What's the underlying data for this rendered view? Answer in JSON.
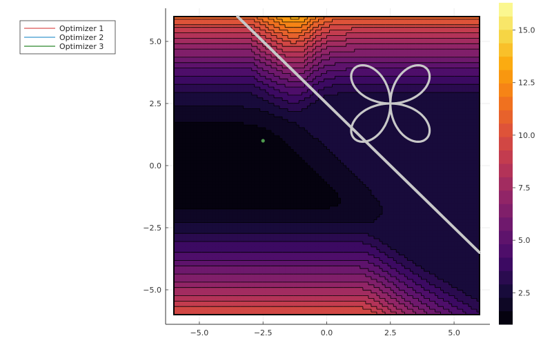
{
  "chart_data": {
    "type": "heatmap",
    "subtype": "filled-contour with overlaid optimizer paths",
    "colormap": "inferno",
    "x_range": [
      -6,
      6
    ],
    "y_range": [
      -6,
      6
    ],
    "x_ticks": [
      -5.0,
      -2.5,
      0.0,
      2.5,
      5.0
    ],
    "y_ticks": [
      -5.0,
      -2.5,
      0.0,
      2.5,
      5.0
    ],
    "x_tick_labels": [
      "−5.0",
      "−2.5",
      "0.0",
      "2.5",
      "5.0"
    ],
    "y_tick_labels": [
      "−5.0",
      "−2.5",
      "0.0",
      "2.5",
      "5.0"
    ],
    "colorbar": {
      "range": [
        1.0,
        16.3
      ],
      "ticks": [
        2.5,
        5.0,
        7.5,
        10.0,
        12.5,
        15.0
      ],
      "tick_labels": [
        "2.5",
        "5.0",
        "7.5",
        "10.0",
        "12.5",
        "15.0"
      ]
    },
    "grid": true,
    "legend_position": "outside top-left",
    "series": [
      {
        "name": "Optimizer 1",
        "color": "#e26f6f"
      },
      {
        "name": "Optimizer 2",
        "color": "#5aa9d6"
      },
      {
        "name": "Optimizer 3",
        "color": "#4e9a4e"
      }
    ],
    "overlays": {
      "diagonal_path": {
        "color": "#c8c8c8",
        "from": [
          -3.5,
          6.0
        ],
        "to": [
          6.0,
          -3.5
        ]
      },
      "butterfly_curve": {
        "color": "#c8c8c8",
        "center": [
          2.5,
          2.5
        ],
        "lobe_size": 2.0
      },
      "point": {
        "color": "#4e9a4e",
        "x": -2.5,
        "y": 1.0
      }
    }
  }
}
